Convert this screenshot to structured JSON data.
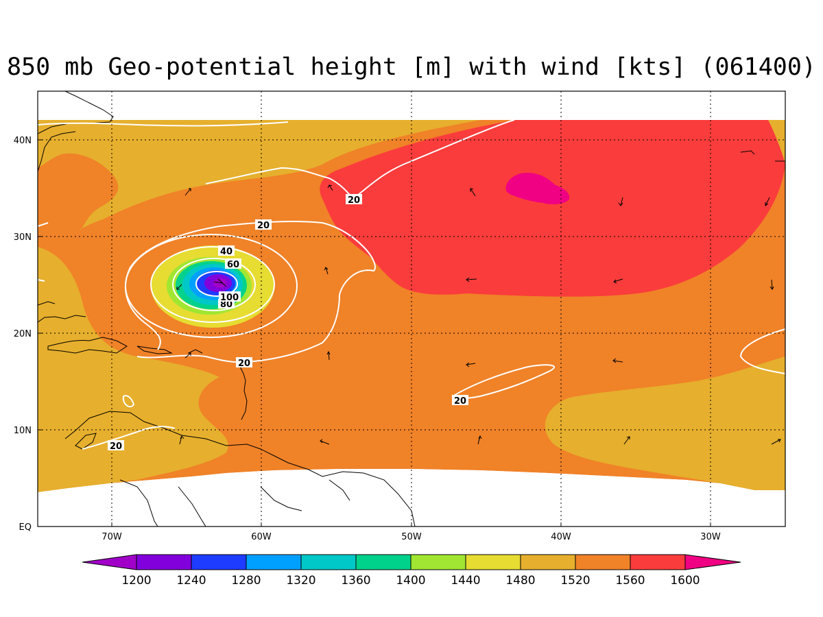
{
  "title": "850 mb Geo-potential height [m] with wind [kts] (061400)",
  "colors": {
    "c1200": "#a000c8",
    "c1240": "#8200dc",
    "c1280": "#1e3cff",
    "c1320": "#00a0ff",
    "c1360": "#00c8c8",
    "c1400": "#00d28c",
    "c1440": "#a0e632",
    "c1480": "#e6dc32",
    "c1520": "#e6af2d",
    "c1560": "#f08228",
    "c1600": "#fa3c3c",
    "c1600plus": "#f00082",
    "contour": "#ffffff",
    "coast": "#000000"
  },
  "chart_data": {
    "type": "contour_map",
    "title": "850 mb Geo-potential height [m] with wind [kts] (061400)",
    "lon_range": [
      -75,
      -25
    ],
    "lat_range": [
      0,
      45
    ],
    "x_ticks": [
      "70W",
      "60W",
      "50W",
      "40W",
      "30W"
    ],
    "y_ticks": [
      "EQ",
      "10N",
      "20N",
      "30N",
      "40N"
    ],
    "grid": true,
    "colorbar_levels": [
      "1200",
      "1240",
      "1280",
      "1320",
      "1360",
      "1400",
      "1440",
      "1480",
      "1520",
      "1560",
      "1600"
    ],
    "wind_contour_labels": [
      "20",
      "20",
      "20",
      "20",
      "20",
      "40",
      "60",
      "80",
      "100"
    ]
  },
  "axes": {
    "x_ticks": [
      "70W",
      "60W",
      "50W",
      "40W",
      "30W"
    ],
    "y_ticks": [
      "EQ",
      "10N",
      "20N",
      "30N",
      "40N"
    ]
  },
  "colorbar": {
    "labels": [
      "1200",
      "1240",
      "1280",
      "1320",
      "1360",
      "1400",
      "1440",
      "1480",
      "1520",
      "1560",
      "1600"
    ]
  },
  "contour_labels": {
    "a": "20",
    "b": "20",
    "c": "20",
    "d": "20",
    "e": "20",
    "f": "40",
    "g": "60",
    "h": "80",
    "i": "100"
  }
}
